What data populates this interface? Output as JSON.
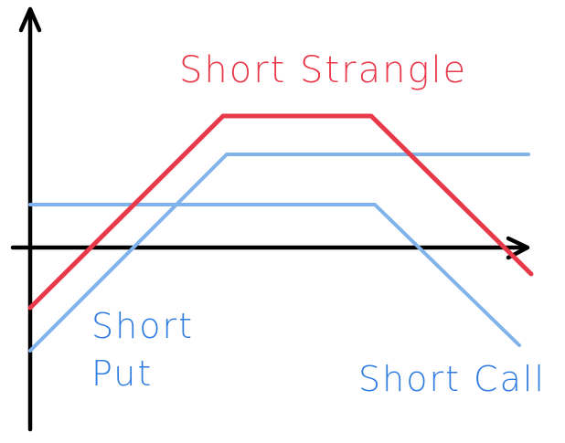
{
  "labels": {
    "strangle": "Short Strangle",
    "put_line1": "Short",
    "put_line2": "Put",
    "call": "Short Call"
  },
  "colors": {
    "strangle": "#e8394a",
    "put_call": "#7fb3ea",
    "label_blue": "#2f7de1",
    "axes": "#000000"
  }
}
